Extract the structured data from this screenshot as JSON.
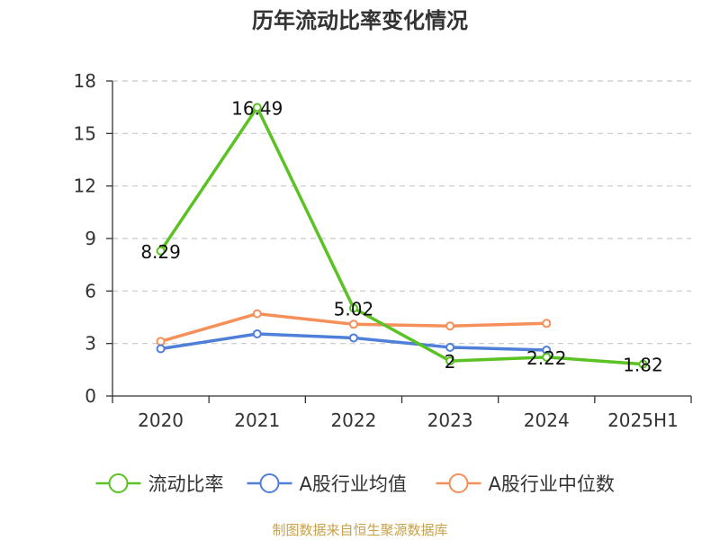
{
  "chart_data": {
    "type": "line",
    "title": "历年流动比率变化情况",
    "categories": [
      "2020",
      "2021",
      "2022",
      "2023",
      "2024",
      "2025H1"
    ],
    "ylim": [
      0,
      18
    ],
    "yticks": [
      0,
      3,
      6,
      9,
      12,
      15,
      18
    ],
    "grid": true,
    "legend_position": "bottom",
    "series": [
      {
        "name": "流动比率",
        "color": "#5bc224",
        "values": [
          8.29,
          16.49,
          5.02,
          2,
          2.22,
          1.82
        ],
        "labels": [
          "8.29",
          "16.49",
          "5.02",
          "2",
          "2.22",
          "1.82"
        ]
      },
      {
        "name": "A股行业均值",
        "color": "#4f7fd9",
        "values": [
          2.7,
          3.55,
          3.32,
          2.78,
          2.62,
          null
        ]
      },
      {
        "name": "A股行业中位数",
        "color": "#f5905a",
        "values": [
          3.12,
          4.7,
          4.1,
          4.0,
          4.15,
          null
        ]
      }
    ],
    "source": "制图数据来自恒生聚源数据库"
  }
}
